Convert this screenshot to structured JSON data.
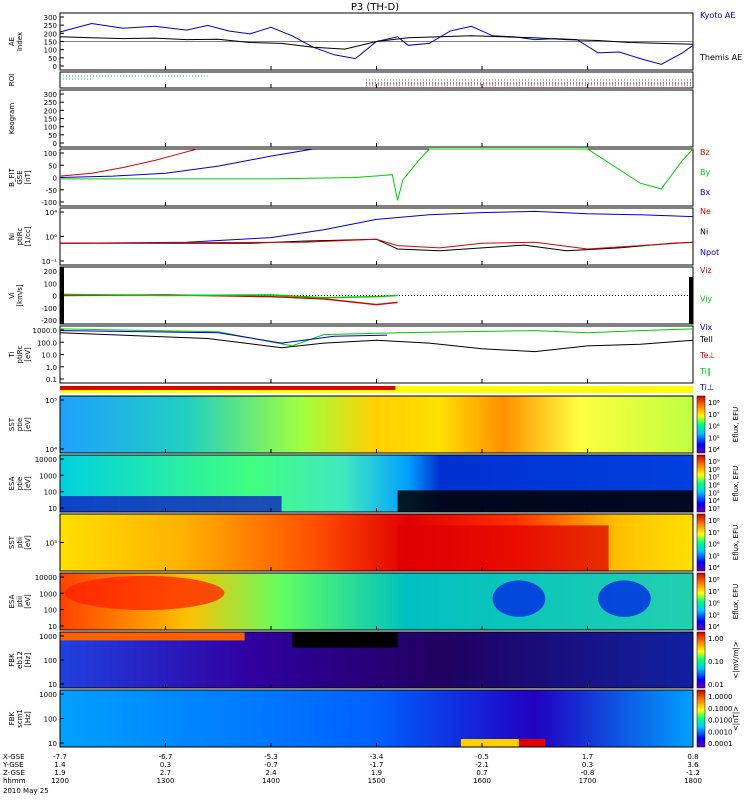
{
  "title": "P3 (TH-D)",
  "date": "2010 May 25",
  "colors": {
    "red": "#dd0000",
    "green": "#00cc00",
    "blue": "#0000cc",
    "black": "#000000"
  },
  "chart_data": [
    {
      "type": "line",
      "id": "ae",
      "ylabel": "AE Index",
      "yticks": [
        "300",
        "250",
        "200",
        "150",
        "100",
        "50",
        "0"
      ],
      "ylim": [
        0,
        300
      ],
      "series": [
        {
          "name": "Kyoto AE",
          "color": "#0000cc",
          "x": [
            12.0,
            12.3,
            12.6,
            12.9,
            13.2,
            13.4,
            13.6,
            13.8,
            14.0,
            14.2,
            14.4,
            14.6,
            14.8,
            15.0,
            15.2,
            15.3,
            15.5,
            15.7,
            15.9,
            16.1,
            16.3,
            16.5,
            16.7,
            16.9,
            17.1,
            17.3,
            17.5,
            17.7,
            17.9,
            18.0
          ],
          "y": [
            200,
            245,
            220,
            230,
            210,
            235,
            205,
            190,
            225,
            180,
            120,
            80,
            60,
            150,
            175,
            130,
            140,
            205,
            230,
            180,
            175,
            160,
            165,
            160,
            90,
            95,
            60,
            30,
            90,
            130
          ]
        },
        {
          "name": "Themis AE",
          "color": "#000000",
          "x": [
            12.0,
            12.3,
            12.6,
            12.9,
            13.2,
            13.5,
            13.8,
            14.1,
            14.4,
            14.7,
            15.0,
            15.3,
            15.6,
            15.9,
            16.2,
            16.5,
            16.8,
            17.1,
            17.4,
            17.7,
            18.0
          ],
          "y": [
            175,
            170,
            165,
            168,
            160,
            162,
            145,
            140,
            120,
            110,
            150,
            170,
            175,
            180,
            175,
            170,
            160,
            155,
            145,
            140,
            135
          ]
        }
      ]
    },
    {
      "type": "line",
      "id": "roi",
      "ylabel": "ROI",
      "note": "dotted traces"
    },
    {
      "type": "line",
      "id": "keogram",
      "ylabel": "Keogram",
      "yticks": [
        "300",
        "250",
        "200",
        "150",
        "100",
        "50",
        "0"
      ]
    },
    {
      "type": "line",
      "id": "bfield",
      "ylabel": "B_FIT GSE [nT]",
      "yticks": [
        "100",
        "50",
        "0",
        "-50",
        "-100"
      ],
      "ylim": [
        -100,
        100
      ],
      "series": [
        {
          "name": "Bz",
          "color": "#dd0000",
          "x": [
            12.0,
            12.3,
            12.6,
            12.9,
            13.1,
            13.3
          ],
          "y": [
            5,
            15,
            35,
            60,
            80,
            100
          ]
        },
        {
          "name": "By",
          "color": "#00cc00",
          "x": [
            12.0,
            13.0,
            14.0,
            14.8,
            15.15,
            15.2,
            15.25,
            15.4,
            15.5,
            16.0,
            17.0,
            17.5,
            17.7,
            17.9,
            18.0
          ],
          "y": [
            -5,
            -5,
            -5,
            0,
            10,
            -80,
            -8,
            60,
            100,
            100,
            100,
            -20,
            -40,
            60,
            100
          ]
        },
        {
          "name": "Bx",
          "color": "#0000cc",
          "x": [
            12.0,
            12.5,
            13.0,
            13.5,
            14.0,
            14.4
          ],
          "y": [
            0,
            5,
            15,
            40,
            75,
            100
          ]
        }
      ]
    },
    {
      "type": "line",
      "id": "density",
      "ylabel": "Ni ptiRc [1/cc]",
      "yticks": [
        "10⁴",
        "10⁰",
        "10⁻¹"
      ],
      "series": [
        {
          "name": "Ne",
          "color": "#dd0000"
        },
        {
          "name": "Ni",
          "color": "#000000"
        },
        {
          "name": "Npot",
          "color": "#0000cc"
        }
      ]
    },
    {
      "type": "line",
      "id": "velocity",
      "ylabel": "Vi [km/s]",
      "yticks": [
        "200",
        "100",
        "0",
        "-100",
        "-200"
      ],
      "ylim": [
        -250,
        250
      ],
      "series": [
        {
          "name": "Viz",
          "color": "#dd0000"
        },
        {
          "name": "Viy",
          "color": "#00cc00"
        },
        {
          "name": "Vix",
          "color": "#0000cc"
        }
      ]
    },
    {
      "type": "line",
      "id": "temperature",
      "ylabel": "Ti ptiRc [eV]",
      "yticks": [
        "1000.0",
        "100.0",
        "10.0",
        "1.0",
        "0.1"
      ],
      "series": [
        {
          "name": "Tell",
          "color": "#000000"
        },
        {
          "name": "Te⊥",
          "color": "#dd0000"
        },
        {
          "name": "Ti‖",
          "color": "#00cc00"
        },
        {
          "name": "Ti⊥",
          "color": "#0000cc"
        }
      ]
    },
    {
      "type": "heatmap",
      "id": "sst_e",
      "ylabel": "SST ptie [eV]",
      "yticks": [
        "10⁵",
        "10⁴"
      ],
      "zlabel": "Eflux, EFU",
      "zticks": [
        "10⁸",
        "10⁷",
        "10⁶",
        "10⁵",
        "10⁴"
      ]
    },
    {
      "type": "heatmap",
      "id": "esa_e",
      "ylabel": "ESA ptie [eV]",
      "yticks": [
        "10000",
        "1000",
        "100",
        "10"
      ],
      "zlabel": "Eflux, EFU",
      "zticks": [
        "10⁹",
        "10⁸",
        "10⁷",
        "10⁶",
        "10⁵",
        "10⁴",
        "10³"
      ]
    },
    {
      "type": "heatmap",
      "id": "sst_i",
      "ylabel": "SST ptii [eV]",
      "yticks": [
        "10⁵"
      ],
      "zlabel": "Eflux, EFU",
      "zticks": [
        "10⁸",
        "10⁷",
        "10⁶",
        "10⁵",
        "10⁴"
      ]
    },
    {
      "type": "heatmap",
      "id": "esa_i",
      "ylabel": "ESA ptii [eV]",
      "yticks": [
        "10000",
        "1000",
        "100",
        "10"
      ],
      "zlabel": "Eflux, EFU",
      "zticks": [
        "10⁸",
        "10⁷",
        "10⁶",
        "10⁵",
        "10⁴"
      ]
    },
    {
      "type": "heatmap",
      "id": "fbk_e",
      "ylabel": "FBK eb12 [Hz]",
      "yticks": [
        "1000",
        "100",
        "10"
      ],
      "zlabel": "<|mV/m|>",
      "zticks": [
        "1.00",
        "0.10",
        "0.01"
      ]
    },
    {
      "type": "heatmap",
      "id": "fbk_b",
      "ylabel": "FBK scm1 [Hz]",
      "yticks": [
        "1000",
        "100",
        "10"
      ],
      "zlabel": "<|nT|>",
      "zticks": [
        "1.0000",
        "0.1000",
        "0.0100",
        "0.0010",
        "0.0001"
      ]
    }
  ],
  "ephemeris": {
    "labels": [
      "X-GSE",
      "Y-GSE",
      "Z-GSE",
      "hhmm"
    ],
    "columns": [
      [
        "-7.7",
        "1.4",
        "1.9",
        "1200"
      ],
      [
        "-6.7",
        "0.3",
        "2.7",
        "1300"
      ],
      [
        "-5.3",
        "-0.7",
        "2.4",
        "1400"
      ],
      [
        "-3.4",
        "-1.7",
        "1.9",
        "1500"
      ],
      [
        "-0.5",
        "-2.1",
        "0.7",
        "1600"
      ],
      [
        "1.7",
        "0.3",
        "-0.8",
        "1700"
      ],
      [
        "0.8",
        "3.6",
        "-1.2",
        "1800"
      ]
    ]
  }
}
